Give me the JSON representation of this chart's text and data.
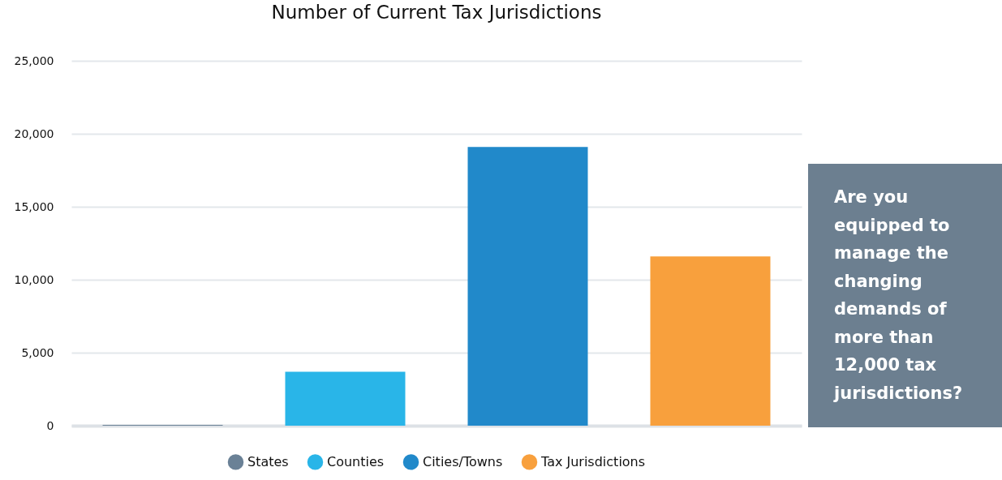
{
  "chart_data": {
    "type": "bar",
    "title": "Number of Current Tax Jurisdictions",
    "categories": [
      null,
      null,
      null,
      null
    ],
    "series": [
      {
        "name": "States",
        "color": "#6a8196",
        "values": [
          50,
          null,
          null,
          null
        ]
      },
      {
        "name": "Counties",
        "color": "#29b5e8",
        "values": [
          null,
          3700,
          null,
          null
        ]
      },
      {
        "name": "Cities/Towns",
        "color": "#2189ca",
        "values": [
          null,
          null,
          19100,
          null
        ]
      },
      {
        "name": "Tax Jurisdictions",
        "color": "#f8a03d",
        "values": [
          null,
          null,
          null,
          11600
        ]
      }
    ],
    "ylim": [
      0,
      25000
    ],
    "yticks": [
      0,
      {
        "value": 5000,
        "label": "5,000"
      },
      {
        "value": 10000,
        "label": "10,000"
      },
      {
        "value": 15000,
        "label": "15,000"
      },
      {
        "value": 20000,
        "label": "20,000"
      },
      {
        "value": 25000,
        "label": "25,000"
      }
    ],
    "grid": "y",
    "legend": "bottom",
    "annotations": [
      "Are you equipped to manage the changing demands of more than 12,000 tax jurisdictions?"
    ]
  }
}
